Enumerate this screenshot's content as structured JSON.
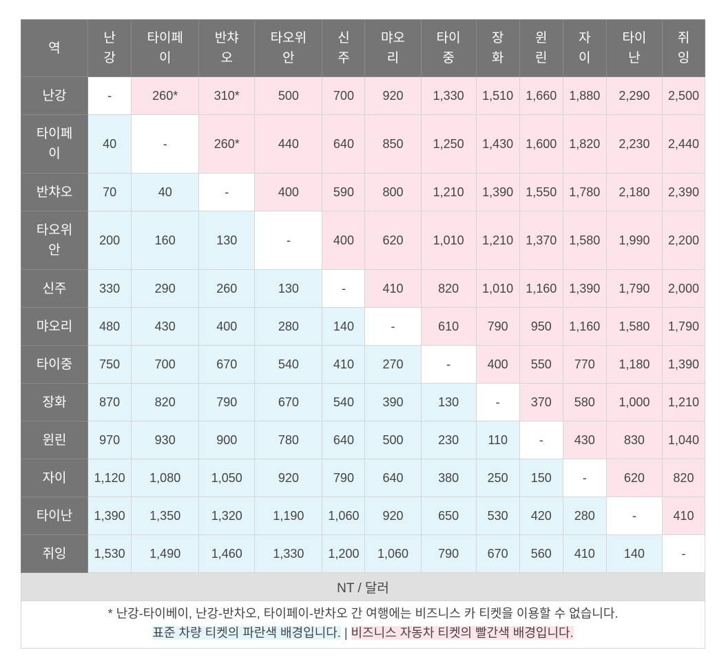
{
  "header": {
    "corner": "역",
    "columns": [
      "난\n강",
      "타이페\n이",
      "반챠\n오",
      "타오위\n안",
      "신\n주",
      "먀오\n리",
      "타이\n중",
      "장\n화",
      "윈\n린",
      "자\n이",
      "타이\n난",
      "쥐\n잉"
    ]
  },
  "rows": [
    {
      "label": "난강",
      "cells": [
        "-",
        "260*",
        "310*",
        "500",
        "700",
        "920",
        "1,330",
        "1,510",
        "1,660",
        "1,880",
        "2,290",
        "2,500"
      ]
    },
    {
      "label": "타이페\n이",
      "cells": [
        "40",
        "-",
        "260*",
        "440",
        "640",
        "850",
        "1,250",
        "1,430",
        "1,600",
        "1,820",
        "2,230",
        "2,440"
      ]
    },
    {
      "label": "반챠오",
      "cells": [
        "70",
        "40",
        "-",
        "400",
        "590",
        "800",
        "1,210",
        "1,390",
        "1,550",
        "1,780",
        "2,180",
        "2,390"
      ]
    },
    {
      "label": "타오위\n안",
      "cells": [
        "200",
        "160",
        "130",
        "-",
        "400",
        "620",
        "1,010",
        "1,210",
        "1,370",
        "1,580",
        "1,990",
        "2,200"
      ]
    },
    {
      "label": "신주",
      "cells": [
        "330",
        "290",
        "260",
        "130",
        "-",
        "410",
        "820",
        "1,010",
        "1,160",
        "1,390",
        "1,790",
        "2,000"
      ]
    },
    {
      "label": "먀오리",
      "cells": [
        "480",
        "430",
        "400",
        "280",
        "140",
        "-",
        "610",
        "790",
        "950",
        "1,160",
        "1,580",
        "1,790"
      ]
    },
    {
      "label": "타이중",
      "cells": [
        "750",
        "700",
        "670",
        "540",
        "410",
        "270",
        "-",
        "400",
        "550",
        "770",
        "1,180",
        "1,390"
      ]
    },
    {
      "label": "장화",
      "cells": [
        "870",
        "820",
        "790",
        "670",
        "540",
        "390",
        "130",
        "-",
        "370",
        "580",
        "1,000",
        "1,210"
      ]
    },
    {
      "label": "윈린",
      "cells": [
        "970",
        "930",
        "900",
        "780",
        "640",
        "500",
        "230",
        "110",
        "-",
        "430",
        "830",
        "1,040"
      ]
    },
    {
      "label": "자이",
      "cells": [
        "1,120",
        "1,080",
        "1,050",
        "920",
        "790",
        "640",
        "380",
        "250",
        "150",
        "-",
        "620",
        "820"
      ]
    },
    {
      "label": "타이난",
      "cells": [
        "1,390",
        "1,350",
        "1,320",
        "1,190",
        "1,060",
        "920",
        "650",
        "530",
        "420",
        "280",
        "-",
        "410"
      ]
    },
    {
      "label": "쥐잉",
      "cells": [
        "1,530",
        "1,490",
        "1,460",
        "1,330",
        "1,200",
        "1,060",
        "790",
        "670",
        "560",
        "410",
        "140",
        "-"
      ]
    }
  ],
  "unit": "NT / 달러",
  "note": {
    "line1": "* 난강-타이베이, 난강-반차오, 타이페이-반차오 간 여행에는 비즈니스 카 티켓을 이용할 수 없습니다.",
    "standard": "표준 차량 티켓의 파란색 배경입니다.",
    "separator": " | ",
    "business": "비즈니스 자동차 티켓의 빨간색 배경입니다."
  },
  "colors": {
    "header_bg": "#757575",
    "standard_bg": "#e4f4fb",
    "business_bg": "#fce4ea",
    "unit_bg": "#e0e0e0"
  }
}
